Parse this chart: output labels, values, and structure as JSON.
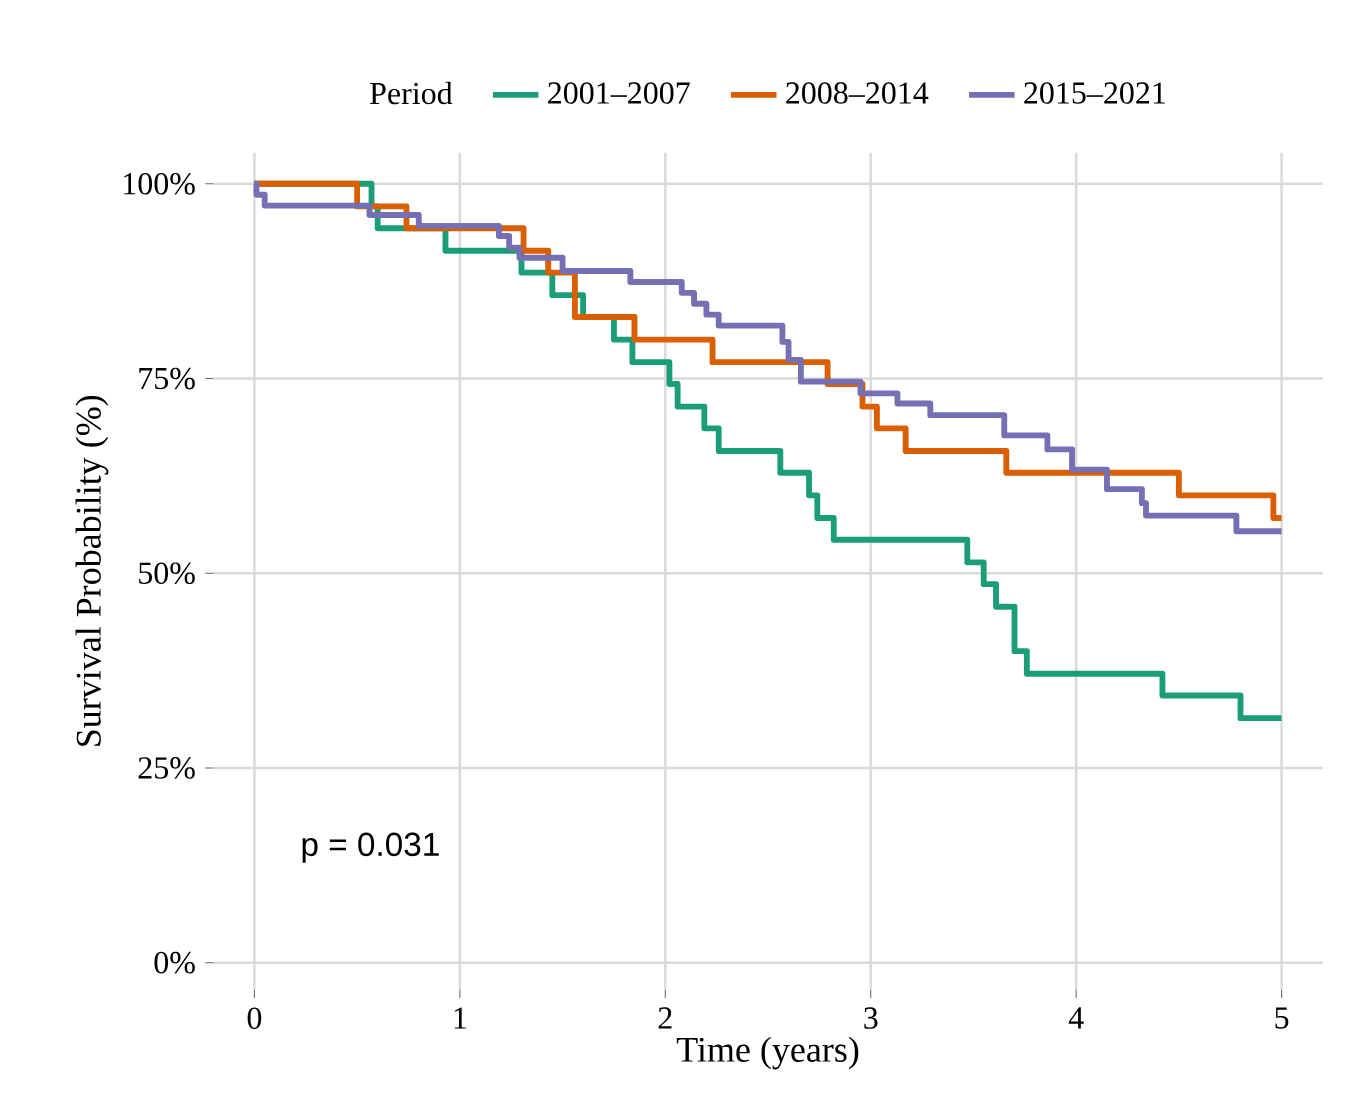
{
  "chart_data": {
    "type": "step",
    "xlabel": "Time (years)",
    "ylabel": "Survival Probability (%)",
    "legend_title": "Period",
    "legend": "top",
    "annotations": [
      "p = 0.031"
    ],
    "series": [
      {
        "name": "2001–2007",
        "color": "#1b9e77",
        "x": [
          0,
          0.57,
          0.6,
          0.93,
          1.3,
          1.45,
          1.6,
          1.75,
          1.84,
          2.02,
          2.06,
          2.19,
          2.26,
          2.56,
          2.7,
          2.74,
          2.82,
          3.47,
          3.55,
          3.61,
          3.7,
          3.76,
          4.42,
          4.8,
          5.0
        ],
        "values": [
          100,
          97.1,
          94.3,
          91.4,
          88.6,
          85.7,
          82.9,
          80,
          77.1,
          74.3,
          71.4,
          68.6,
          65.7,
          62.9,
          60,
          57.1,
          54.3,
          51.4,
          48.6,
          45.7,
          40,
          37.1,
          34.3,
          31.4,
          31.4
        ]
      },
      {
        "name": "2008–2014",
        "color": "#d95f02",
        "x": [
          0,
          0.5,
          0.74,
          1.31,
          1.43,
          1.56,
          1.85,
          2.23,
          2.79,
          2.96,
          3.03,
          3.17,
          3.66,
          4.5,
          4.96,
          5.0
        ],
        "values": [
          100,
          97.1,
          94.3,
          91.4,
          88.6,
          82.9,
          80,
          77.1,
          74.3,
          71.4,
          68.6,
          65.7,
          62.9,
          60,
          57.1,
          57.1
        ]
      },
      {
        "name": "2015–2021",
        "color": "#7570b3",
        "x": [
          0,
          0.01,
          0.05,
          0.56,
          0.8,
          1.19,
          1.24,
          1.29,
          1.5,
          1.83,
          2.08,
          2.14,
          2.2,
          2.26,
          2.57,
          2.6,
          2.66,
          2.95,
          3.13,
          3.29,
          3.65,
          3.86,
          3.98,
          4.15,
          4.32,
          4.34,
          4.78,
          5.0
        ],
        "values": [
          100,
          98.6,
          97.2,
          96,
          94.6,
          93.3,
          91.8,
          90.5,
          88.8,
          87.4,
          86,
          84.6,
          83.2,
          81.8,
          79.7,
          77.4,
          74.6,
          73.1,
          71.8,
          70.3,
          67.7,
          65.9,
          63.3,
          60.8,
          59,
          57.4,
          55.4,
          55.4
        ]
      }
    ],
    "xlim": [
      -0.2,
      5.2
    ],
    "ylim": [
      -3.5,
      104
    ],
    "xticks": [
      0,
      1,
      2,
      3,
      4,
      5
    ],
    "yticks": [
      {
        "value": 0,
        "label": "0%"
      },
      {
        "value": 25,
        "label": "25%"
      },
      {
        "value": 50,
        "label": "50%"
      },
      {
        "value": 75,
        "label": "75%"
      },
      {
        "value": 100,
        "label": "100%"
      }
    ],
    "grid": true,
    "line_style": "solid",
    "marker": "none"
  }
}
